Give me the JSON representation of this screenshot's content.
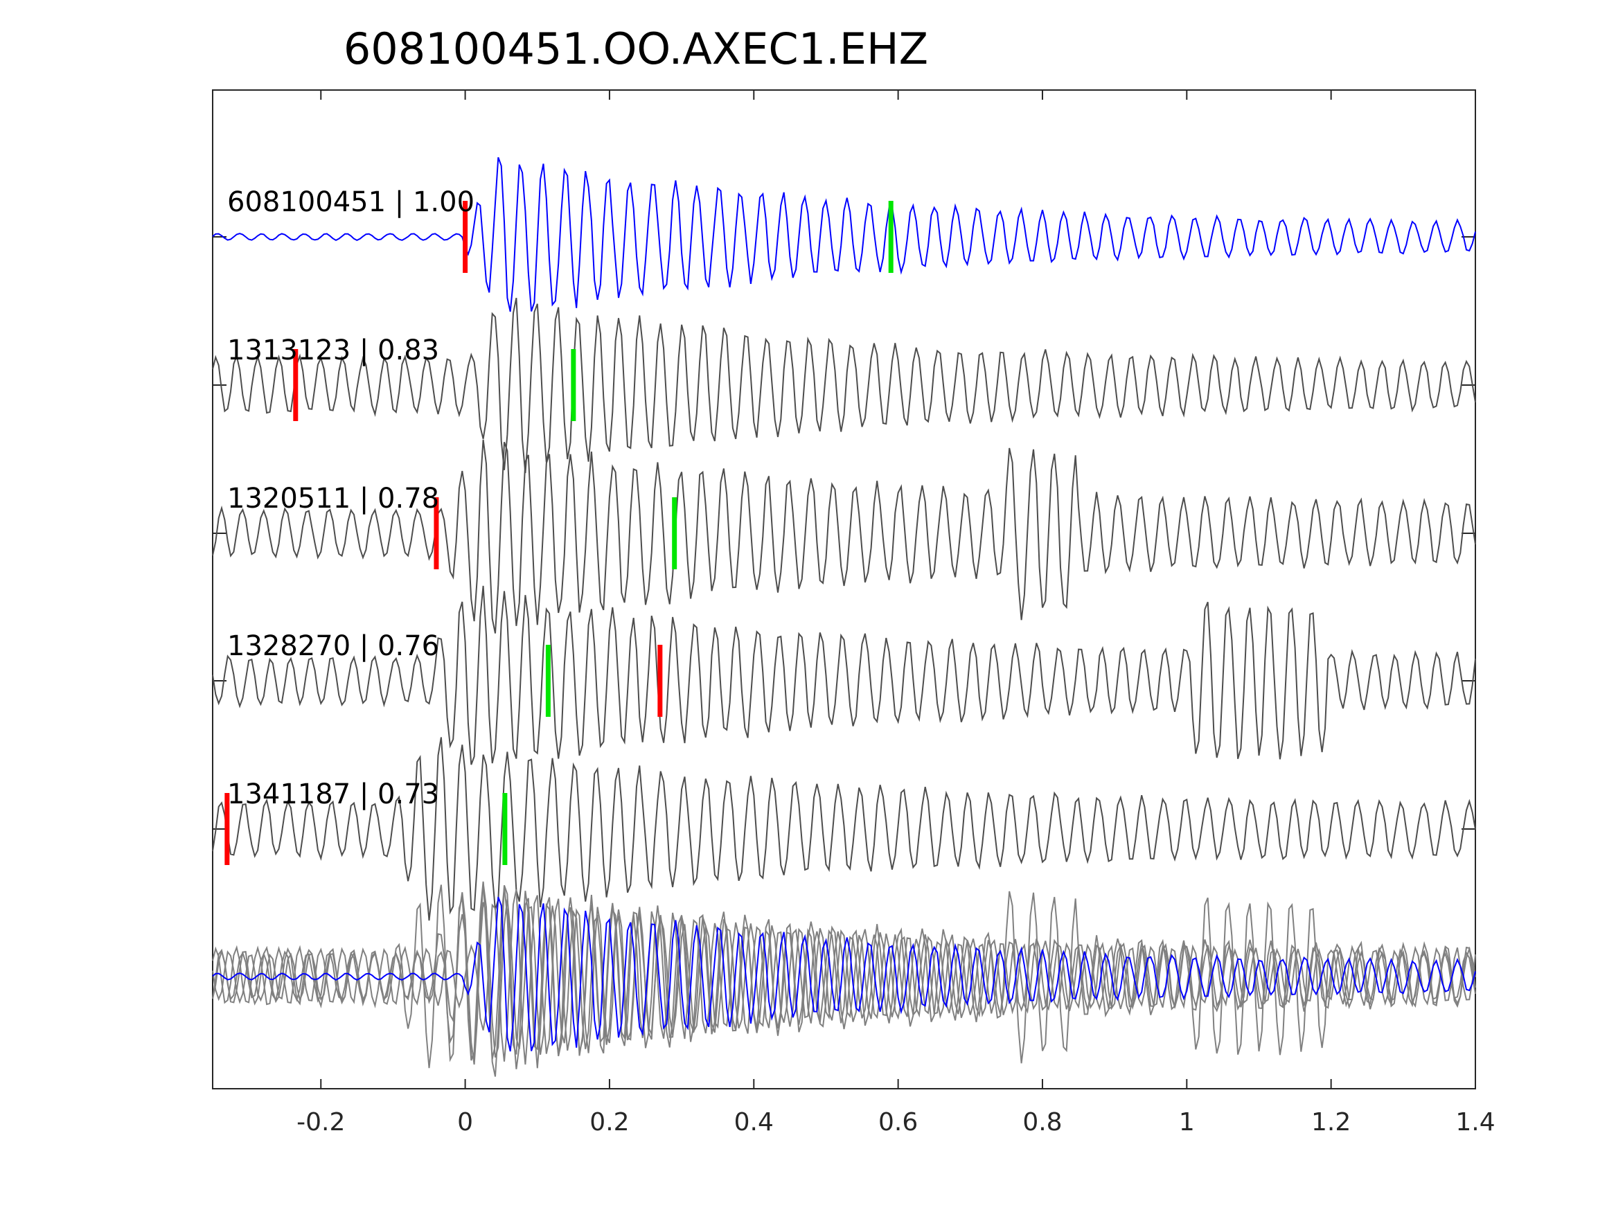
{
  "chart_data": {
    "type": "line",
    "title": "608100451.OO.AXEC1.EHZ",
    "xlabel": "",
    "ylabel": "",
    "xlim": [
      -0.35,
      1.4
    ],
    "x_ticks": [
      -0.2,
      0,
      0.2,
      0.4,
      0.6,
      0.8,
      1,
      1.2,
      1.4
    ],
    "x_tick_labels": [
      "-0.2",
      "0",
      "0.2",
      "0.4",
      "0.6",
      "0.8",
      "1",
      "1.2",
      "1.4"
    ],
    "grid": false,
    "colors": {
      "template": "#0000ff",
      "match": "#4d4d4d",
      "overlay_match": "#808080",
      "p_pick": "#ff0000",
      "s_pick": "#00e600",
      "axes": "#262626"
    },
    "series": [
      {
        "label": "608100451 | 1.00",
        "id": "608100451",
        "cc": 1.0,
        "p_pick": 0.0,
        "s_pick": 0.59,
        "waveform": {
          "amp": 0.52,
          "freq": 33,
          "seed": 11,
          "onset": 0.0,
          "pre_noise": 0.04,
          "coda": 0.15
        }
      },
      {
        "label": "1313123 | 0.83",
        "id": "1313123",
        "cc": 0.83,
        "p_pick": -0.235,
        "s_pick": 0.15,
        "waveform": {
          "amp": 0.55,
          "freq": 34,
          "seed": 23,
          "onset": 0.0,
          "pre_noise": 0.35,
          "coda": 0.25
        }
      },
      {
        "label": "1320511 | 0.78",
        "id": "1320511",
        "cc": 0.78,
        "p_pick": -0.04,
        "s_pick": 0.29,
        "waveform": {
          "amp": 0.55,
          "freq": 33,
          "seed": 37,
          "onset": -0.03,
          "pre_noise": 0.3,
          "coda": 0.35
        }
      },
      {
        "label": "1328270 | 0.76",
        "id": "1328270",
        "cc": 0.76,
        "p_pick": 0.27,
        "s_pick": 0.115,
        "waveform": {
          "amp": 0.5,
          "freq": 34,
          "seed": 51,
          "onset": -0.05,
          "pre_noise": 0.3,
          "coda": 0.3
        }
      },
      {
        "label": "1341187 | 0.73",
        "id": "1341187",
        "cc": 0.73,
        "p_pick": -0.33,
        "s_pick": 0.055,
        "waveform": {
          "amp": 0.5,
          "freq": 33,
          "seed": 67,
          "onset": -0.1,
          "pre_noise": 0.35,
          "coda": 0.3
        }
      }
    ],
    "overlay": {
      "baseline": "stacked-overlay",
      "series": [
        "608100451",
        "1313123",
        "1320511",
        "1328270",
        "1341187"
      ]
    }
  }
}
